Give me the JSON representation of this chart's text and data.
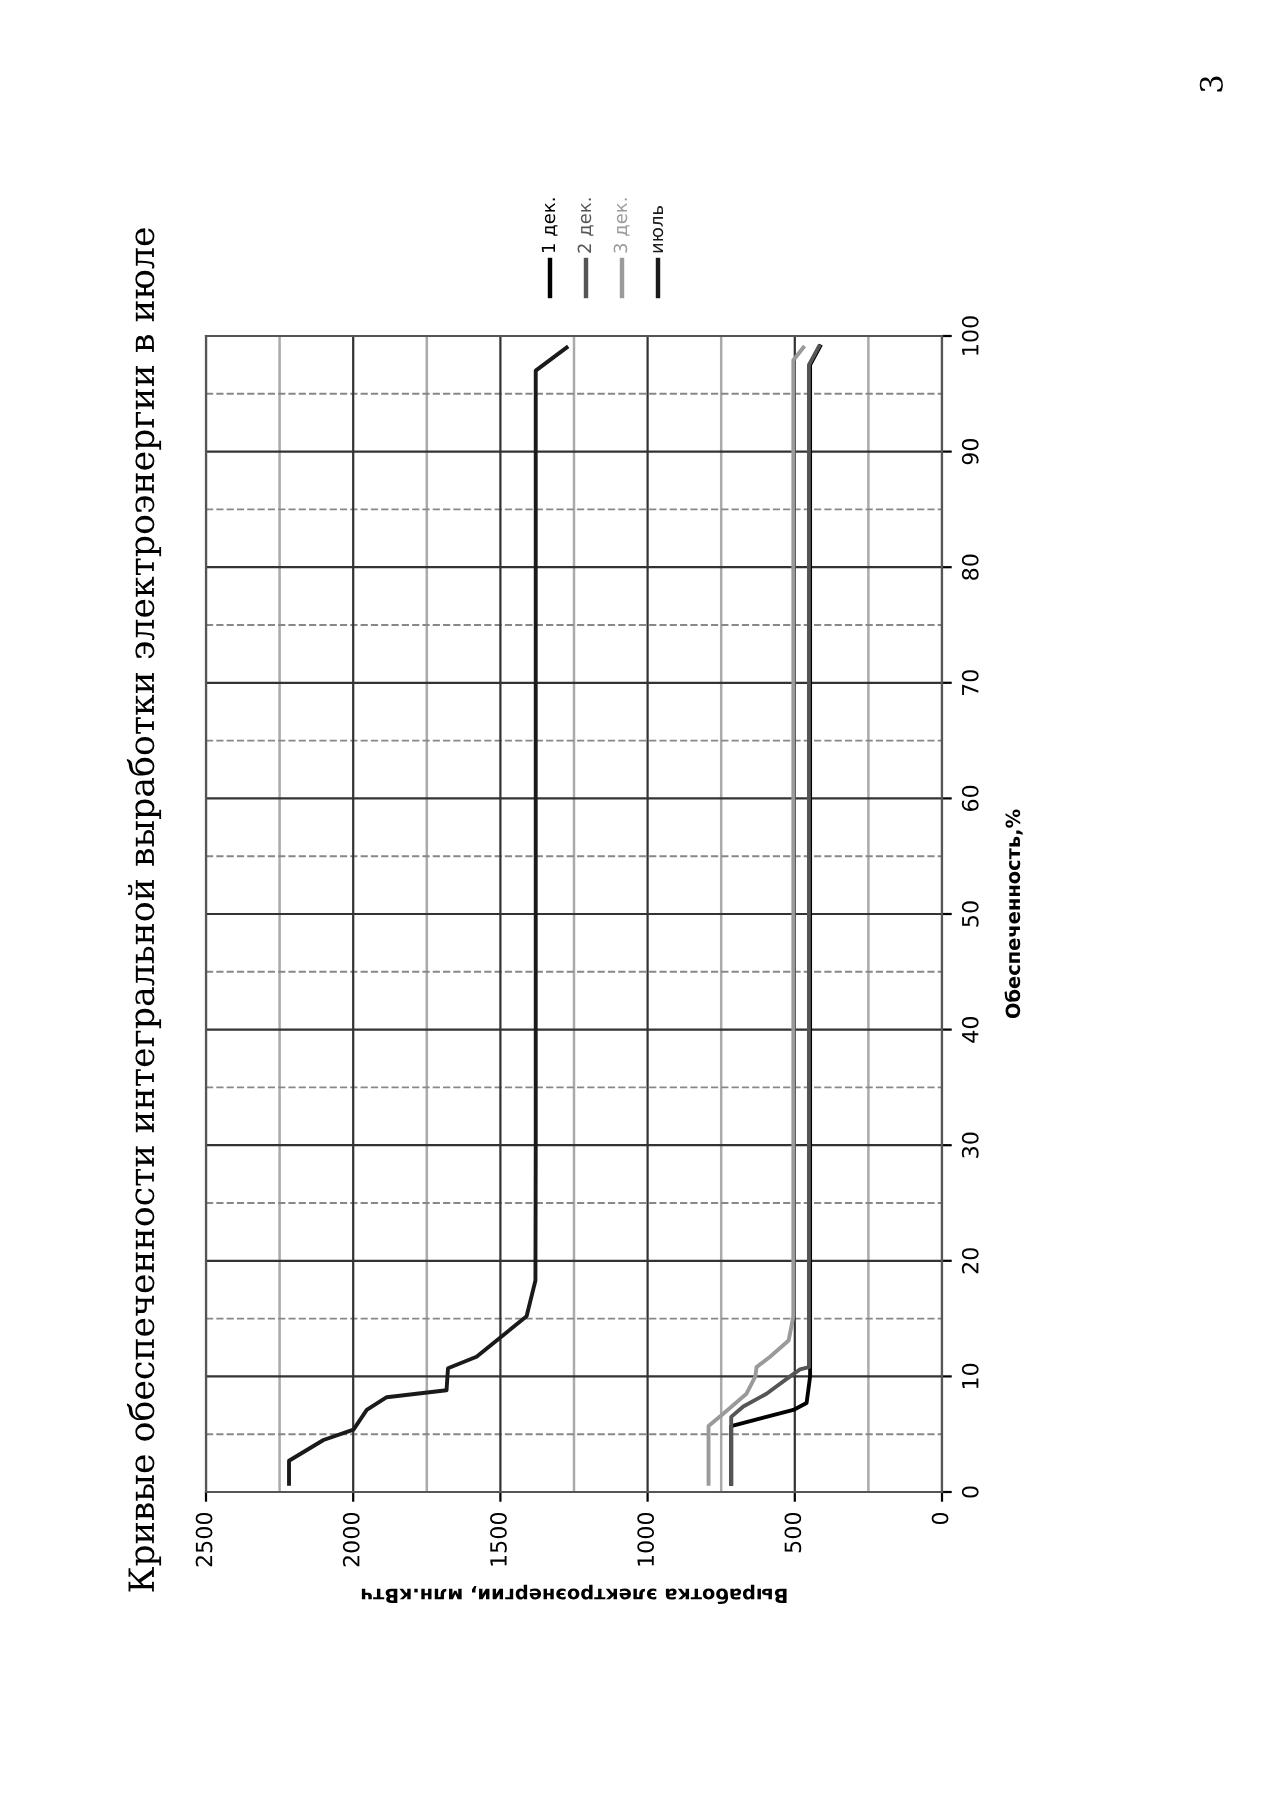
{
  "chart_data": {
    "type": "line",
    "title": "Кривые обеспеченности интегральной выработки электроэнергии в июле",
    "xlabel": "Выработка электроэнергии, млн.кВтч",
    "ylabel": "Обеспеченность,%",
    "annotations": [
      "3"
    ],
    "xlim": [
      2500,
      0
    ],
    "xticks": [
      2500,
      2000,
      1500,
      1000,
      500,
      0
    ],
    "ylim": [
      0,
      100
    ],
    "yticks": [
      0,
      10,
      20,
      30,
      40,
      50,
      60,
      70,
      80,
      90,
      100
    ],
    "grid": true,
    "legend": "right",
    "line_style": "solid",
    "marker": "none",
    "series": [
      {
        "name": "1 дек.",
        "color": "#000000",
        "x": [
          716,
          716,
          505,
          460,
          448,
          448,
          448,
          448,
          448,
          448,
          414
        ],
        "values": [
          0.7,
          5.7,
          7.1,
          7.7,
          10.0,
          20,
          40,
          60,
          80,
          97.5,
          99.1
        ]
      },
      {
        "name": "2 дек.",
        "color": "#555555",
        "x": [
          716,
          716,
          716,
          675,
          596,
          516,
          482,
          452,
          452,
          452,
          452,
          452,
          452,
          418
        ],
        "values": [
          0.7,
          5.7,
          6.5,
          7.4,
          8.5,
          10.0,
          10.6,
          10.8,
          20,
          40,
          60,
          80,
          97.5,
          99.1
        ]
      },
      {
        "name": "3 дек.",
        "color": "#9a9a9a",
        "x": [
          793,
          793,
          742,
          664,
          634,
          630,
          584,
          521,
          505,
          505,
          505,
          505,
          505,
          505,
          471
        ],
        "values": [
          0.7,
          5.7,
          6.8,
          8.5,
          10.0,
          10.8,
          11.7,
          13.1,
          15.2,
          30,
          50,
          70,
          90,
          97.9,
          99.0
        ]
      },
      {
        "name": "июль",
        "color": "#1a1a1a",
        "x": [
          2218,
          2218,
          2101,
          1999,
          1954,
          1886,
          1683,
          1678,
          1581,
          1411,
          1381,
          1380,
          1380,
          1380,
          1380,
          1380,
          1275
        ],
        "values": [
          0.7,
          2.7,
          4.5,
          5.4,
          7.1,
          8.2,
          8.8,
          10.7,
          11.7,
          15.2,
          18.3,
          30,
          50,
          70,
          90,
          97.0,
          99.0
        ]
      }
    ]
  }
}
